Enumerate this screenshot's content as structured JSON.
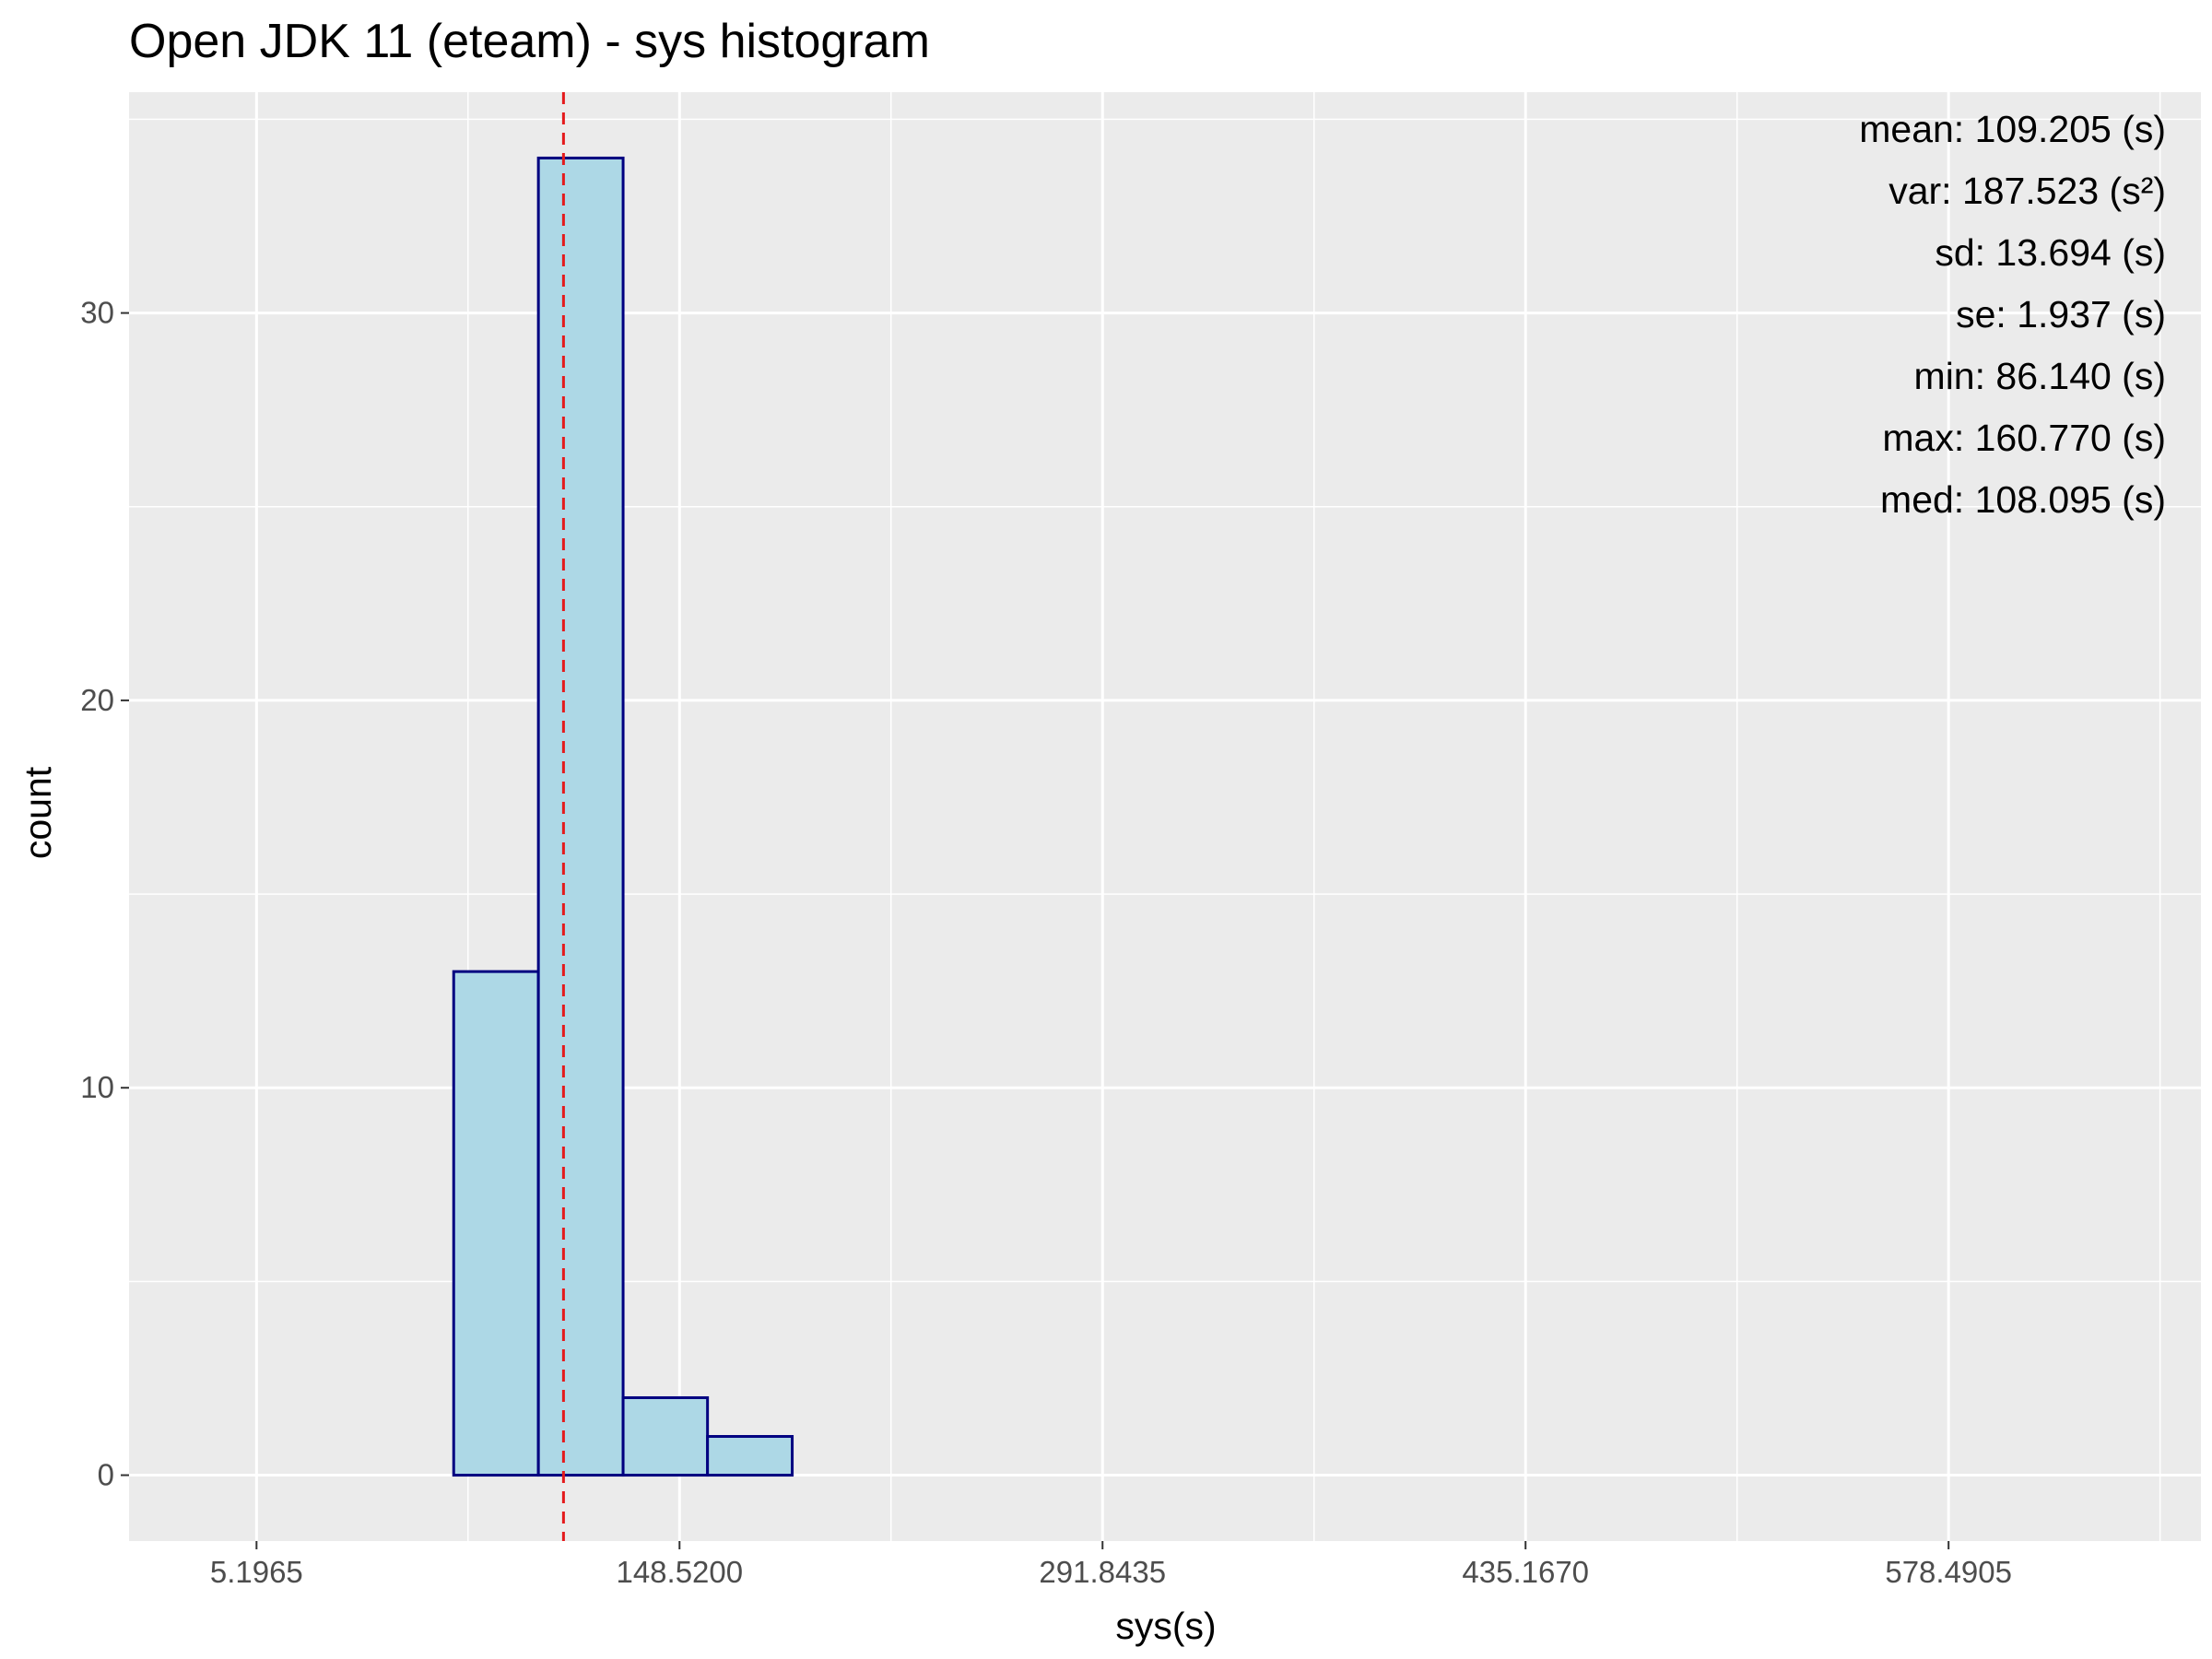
{
  "chart_data": {
    "type": "bar",
    "title": "Open JDK 11 (eteam) - sys histogram",
    "xlabel": "sys(s)",
    "ylabel": "count",
    "xlim": [
      -38.0,
      664.0
    ],
    "ylim": [
      -1.7,
      35.7
    ],
    "x_ticks": [
      5.1965,
      148.52,
      291.8435,
      435.167,
      578.4905
    ],
    "x_tick_labels": [
      "5.1965",
      "148.5200",
      "291.8435",
      "435.1670",
      "578.4905"
    ],
    "y_ticks": [
      0,
      10,
      20,
      30
    ],
    "y_tick_labels": [
      "0",
      "10",
      "20",
      "30"
    ],
    "bins": [
      {
        "x0": -14.0,
        "x1": 14.7,
        "count": 0
      },
      {
        "x0": 14.7,
        "x1": 43.3,
        "count": 0
      },
      {
        "x0": 43.3,
        "x1": 72.0,
        "count": 0
      },
      {
        "x0": 72.0,
        "x1": 100.7,
        "count": 13
      },
      {
        "x0": 100.7,
        "x1": 129.4,
        "count": 34
      },
      {
        "x0": 129.4,
        "x1": 158.0,
        "count": 2
      },
      {
        "x0": 158.0,
        "x1": 186.7,
        "count": 1
      },
      {
        "x0": 186.7,
        "x1": 215.4,
        "count": 0
      },
      {
        "x0": 215.4,
        "x1": 244.1,
        "count": 0
      },
      {
        "x0": 244.1,
        "x1": 272.7,
        "count": 0
      },
      {
        "x0": 272.7,
        "x1": 301.4,
        "count": 0
      },
      {
        "x0": 301.4,
        "x1": 330.1,
        "count": 0
      },
      {
        "x0": 330.1,
        "x1": 358.8,
        "count": 0
      },
      {
        "x0": 358.8,
        "x1": 387.4,
        "count": 0
      },
      {
        "x0": 387.4,
        "x1": 416.1,
        "count": 0
      },
      {
        "x0": 416.1,
        "x1": 444.8,
        "count": 0
      },
      {
        "x0": 444.8,
        "x1": 473.5,
        "count": 0
      },
      {
        "x0": 473.5,
        "x1": 502.1,
        "count": 0
      },
      {
        "x0": 502.1,
        "x1": 530.8,
        "count": 0
      },
      {
        "x0": 530.8,
        "x1": 559.5,
        "count": 0
      },
      {
        "x0": 559.5,
        "x1": 588.2,
        "count": 0
      },
      {
        "x0": 588.2,
        "x1": 616.8,
        "count": 0
      },
      {
        "x0": 616.8,
        "x1": 645.5,
        "count": 0
      }
    ],
    "mean_line": 109.205,
    "stats": [
      "mean: 109.205 (s)",
      "var: 187.523 (s²)",
      "sd: 13.694 (s)",
      "se: 1.937 (s)",
      "min: 86.140 (s)",
      "max: 160.770 (s)",
      "med: 108.095 (s)"
    ],
    "grid": true,
    "colors": {
      "panel": "#ebebeb",
      "grid": "#ffffff",
      "bar_fill": "#add8e6",
      "bar_stroke": "#000080",
      "mean_line": "#e41a1c"
    }
  }
}
